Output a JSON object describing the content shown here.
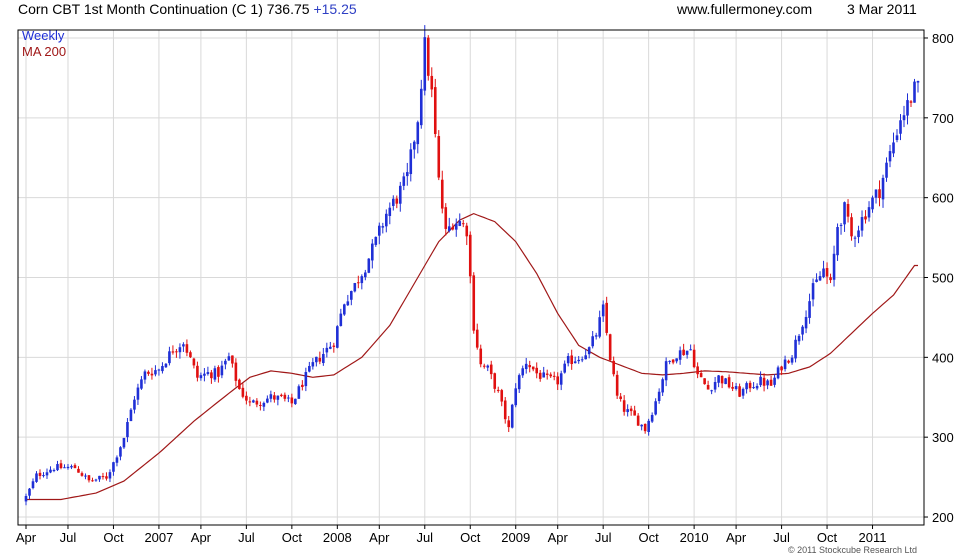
{
  "header": {
    "title": "Corn CBT 1st Month Continuation (C 1) 736.75",
    "change": "+15.25",
    "website": "www.fullermoney.com",
    "date": "3 Mar 2011"
  },
  "footer": {
    "copyright": "© 2011 Stockcube Research Ltd"
  },
  "colors": {
    "up": "#1f2fd6",
    "down": "#e01010",
    "ma": "#a01818",
    "grid": "#d9d9d9"
  },
  "chart_data": {
    "type": "candlestick",
    "interval_label": "Weekly",
    "ylim": [
      190,
      810
    ],
    "y_ticks": [
      200,
      300,
      400,
      500,
      600,
      700,
      800
    ],
    "x_tick_labels": [
      "Apr",
      "Jul",
      "Oct",
      "2007",
      "Apr",
      "Jul",
      "Oct",
      "2008",
      "Apr",
      "Jul",
      "Oct",
      "2009",
      "Apr",
      "Jul",
      "Oct",
      "2010",
      "Apr",
      "Jul",
      "Oct",
      "2011"
    ],
    "x_tick_weeks": [
      0,
      12,
      25,
      38,
      50,
      63,
      76,
      89,
      101,
      114,
      127,
      140,
      152,
      165,
      178,
      191,
      203,
      216,
      229,
      242
    ],
    "total_weeks": 256,
    "close_anchors": [
      [
        0,
        225
      ],
      [
        3,
        252
      ],
      [
        8,
        262
      ],
      [
        14,
        262
      ],
      [
        18,
        245
      ],
      [
        23,
        250
      ],
      [
        25,
        268
      ],
      [
        28,
        300
      ],
      [
        31,
        350
      ],
      [
        34,
        380
      ],
      [
        38,
        385
      ],
      [
        42,
        410
      ],
      [
        45,
        420
      ],
      [
        49,
        375
      ],
      [
        52,
        380
      ],
      [
        55,
        380
      ],
      [
        58,
        400
      ],
      [
        61,
        360
      ],
      [
        64,
        342
      ],
      [
        67,
        345
      ],
      [
        70,
        350
      ],
      [
        73,
        348
      ],
      [
        76,
        342
      ],
      [
        79,
        368
      ],
      [
        82,
        390
      ],
      [
        85,
        405
      ],
      [
        88,
        420
      ],
      [
        91,
        470
      ],
      [
        94,
        490
      ],
      [
        97,
        515
      ],
      [
        100,
        545
      ],
      [
        103,
        580
      ],
      [
        106,
        600
      ],
      [
        109,
        625
      ],
      [
        112,
        700
      ],
      [
        114,
        790
      ],
      [
        116,
        730
      ],
      [
        118,
        620
      ],
      [
        120,
        555
      ],
      [
        122,
        570
      ],
      [
        124,
        570
      ],
      [
        126,
        560
      ],
      [
        128,
        440
      ],
      [
        130,
        390
      ],
      [
        132,
        385
      ],
      [
        135,
        355
      ],
      [
        138,
        310
      ],
      [
        140,
        365
      ],
      [
        143,
        395
      ],
      [
        146,
        380
      ],
      [
        149,
        372
      ],
      [
        152,
        370
      ],
      [
        155,
        395
      ],
      [
        158,
        400
      ],
      [
        161,
        410
      ],
      [
        163,
        430
      ],
      [
        165,
        460
      ],
      [
        167,
        400
      ],
      [
        169,
        350
      ],
      [
        171,
        335
      ],
      [
        174,
        325
      ],
      [
        177,
        310
      ],
      [
        180,
        345
      ],
      [
        183,
        390
      ],
      [
        186,
        405
      ],
      [
        190,
        410
      ],
      [
        192,
        378
      ],
      [
        195,
        360
      ],
      [
        198,
        375
      ],
      [
        201,
        365
      ],
      [
        204,
        355
      ],
      [
        207,
        365
      ],
      [
        210,
        370
      ],
      [
        213,
        365
      ],
      [
        216,
        390
      ],
      [
        219,
        405
      ],
      [
        222,
        445
      ],
      [
        225,
        485
      ],
      [
        228,
        510
      ],
      [
        230,
        490
      ],
      [
        232,
        565
      ],
      [
        234,
        585
      ],
      [
        236,
        550
      ],
      [
        238,
        565
      ],
      [
        241,
        590
      ],
      [
        244,
        610
      ],
      [
        247,
        655
      ],
      [
        250,
        700
      ],
      [
        252,
        715
      ],
      [
        254,
        735
      ]
    ],
    "ma_label": "MA 200",
    "ma_anchors": [
      [
        0,
        222
      ],
      [
        10,
        222
      ],
      [
        20,
        230
      ],
      [
        28,
        245
      ],
      [
        38,
        280
      ],
      [
        48,
        320
      ],
      [
        58,
        355
      ],
      [
        64,
        375
      ],
      [
        70,
        383
      ],
      [
        76,
        380
      ],
      [
        82,
        375
      ],
      [
        88,
        378
      ],
      [
        96,
        400
      ],
      [
        104,
        440
      ],
      [
        112,
        500
      ],
      [
        118,
        545
      ],
      [
        124,
        572
      ],
      [
        128,
        580
      ],
      [
        134,
        570
      ],
      [
        140,
        545
      ],
      [
        146,
        505
      ],
      [
        152,
        455
      ],
      [
        158,
        415
      ],
      [
        164,
        400
      ],
      [
        170,
        390
      ],
      [
        176,
        380
      ],
      [
        182,
        378
      ],
      [
        188,
        380
      ],
      [
        194,
        383
      ],
      [
        200,
        382
      ],
      [
        206,
        380
      ],
      [
        212,
        378
      ],
      [
        218,
        380
      ],
      [
        224,
        388
      ],
      [
        230,
        405
      ],
      [
        236,
        430
      ],
      [
        242,
        455
      ],
      [
        248,
        478
      ],
      [
        254,
        515
      ]
    ]
  }
}
